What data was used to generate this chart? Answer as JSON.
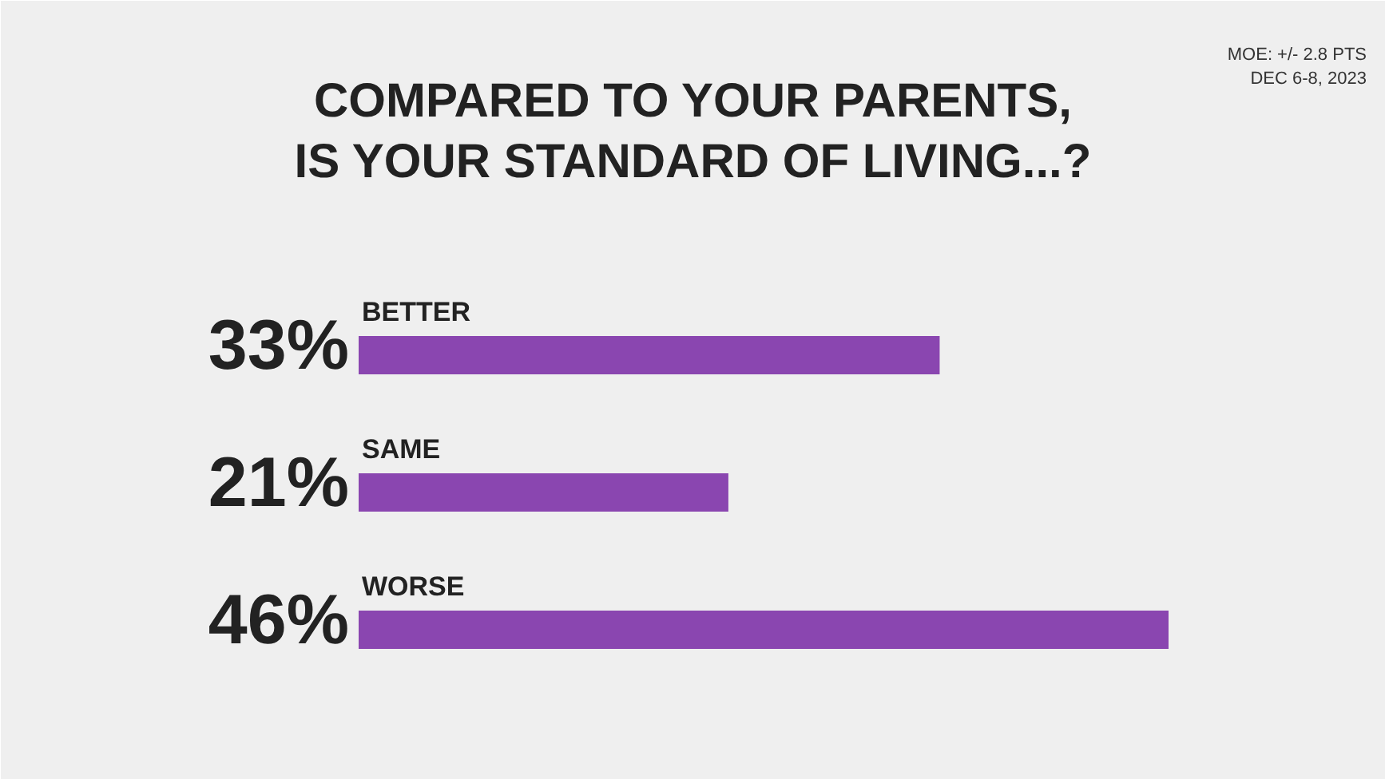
{
  "chart_data": {
    "type": "bar",
    "orientation": "horizontal",
    "title": "COMPARED TO YOUR PARENTS,\nIS YOUR STANDARD OF LIVING...?",
    "categories": [
      "BETTER",
      "SAME",
      "WORSE"
    ],
    "values": [
      33,
      21,
      46
    ],
    "value_labels": [
      "33%",
      "21%",
      "46%"
    ],
    "color": "#8a46b0",
    "annotations": [
      "MOE: +/- 2.8 PTS",
      "DEC 6-8, 2023"
    ]
  }
}
